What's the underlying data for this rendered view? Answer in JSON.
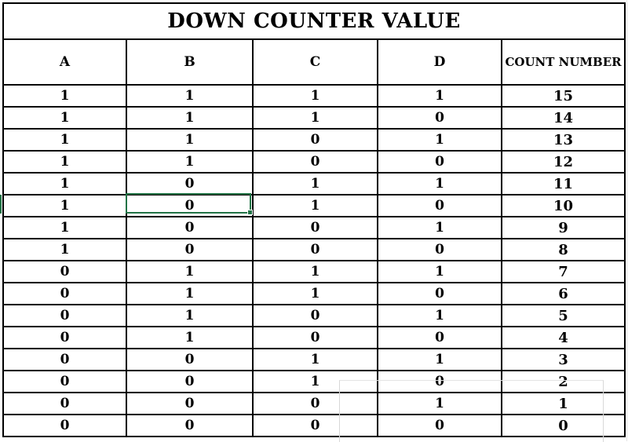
{
  "table": {
    "title": "DOWN COUNTER VALUE",
    "headers": [
      "A",
      "B",
      "C",
      "D",
      "COUNT NUMBER"
    ],
    "rows": [
      [
        "1",
        "1",
        "1",
        "1",
        "15"
      ],
      [
        "1",
        "1",
        "1",
        "0",
        "14"
      ],
      [
        "1",
        "1",
        "0",
        "1",
        "13"
      ],
      [
        "1",
        "1",
        "0",
        "0",
        "12"
      ],
      [
        "1",
        "0",
        "1",
        "1",
        "11"
      ],
      [
        "1",
        "0",
        "1",
        "0",
        "10"
      ],
      [
        "1",
        "0",
        "0",
        "1",
        "9"
      ],
      [
        "1",
        "0",
        "0",
        "0",
        "8"
      ],
      [
        "0",
        "1",
        "1",
        "1",
        "7"
      ],
      [
        "0",
        "1",
        "1",
        "0",
        "6"
      ],
      [
        "0",
        "1",
        "0",
        "1",
        "5"
      ],
      [
        "0",
        "1",
        "0",
        "0",
        "4"
      ],
      [
        "0",
        "0",
        "1",
        "1",
        "3"
      ],
      [
        "0",
        "0",
        "1",
        "0",
        "2"
      ],
      [
        "0",
        "0",
        "0",
        "1",
        "1"
      ],
      [
        "0",
        "0",
        "0",
        "0",
        "0"
      ]
    ]
  },
  "selection": {
    "row": 6,
    "column": "B"
  },
  "colors": {
    "border": "#000000",
    "selection": "#217346",
    "gridline": "#e3e3e3"
  }
}
